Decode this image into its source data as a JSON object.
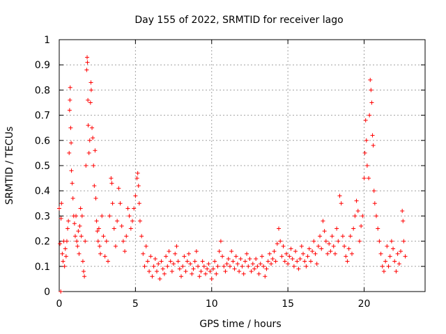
{
  "chart_data": {
    "type": "scatter",
    "title": "Day 155 of 2022, SRMTID for receiver lago",
    "xlabel": "GPS time / hours",
    "ylabel": "SRMTID / TECUs",
    "xlim": [
      0,
      24
    ],
    "ylim": [
      0,
      1
    ],
    "xticks": [
      "0",
      "5",
      "10",
      "15",
      "20"
    ],
    "xtick_values": [
      0,
      5,
      10,
      15,
      20
    ],
    "yticks": [
      "0",
      "0.1",
      "0.2",
      "0.3",
      "0.4",
      "0.5",
      "0.6",
      "0.7",
      "0.8",
      "0.9",
      "1"
    ],
    "ytick_values": [
      0,
      0.1,
      0.2,
      0.3,
      0.4,
      0.5,
      0.6,
      0.7,
      0.8,
      0.9,
      1.0
    ],
    "grid": true,
    "marker": "+",
    "color": "#ff0000",
    "series": [
      {
        "name": "SRMTID",
        "points": [
          [
            0.0,
            0.33
          ],
          [
            0.05,
            0.19
          ],
          [
            0.1,
            0.0
          ],
          [
            0.12,
            0.29
          ],
          [
            0.15,
            0.35
          ],
          [
            0.2,
            0.15
          ],
          [
            0.25,
            0.12
          ],
          [
            0.3,
            0.2
          ],
          [
            0.35,
            0.1
          ],
          [
            0.4,
            0.17
          ],
          [
            0.45,
            0.14
          ],
          [
            0.5,
            0.2
          ],
          [
            0.55,
            0.25
          ],
          [
            0.6,
            0.28
          ],
          [
            0.65,
            0.55
          ],
          [
            0.68,
            0.72
          ],
          [
            0.7,
            0.76
          ],
          [
            0.72,
            0.81
          ],
          [
            0.75,
            0.65
          ],
          [
            0.78,
            0.59
          ],
          [
            0.8,
            0.48
          ],
          [
            0.85,
            0.43
          ],
          [
            0.9,
            0.37
          ],
          [
            0.95,
            0.3
          ],
          [
            1.0,
            0.27
          ],
          [
            1.05,
            0.22
          ],
          [
            1.1,
            0.3
          ],
          [
            1.15,
            0.2
          ],
          [
            1.2,
            0.18
          ],
          [
            1.25,
            0.24
          ],
          [
            1.3,
            0.15
          ],
          [
            1.35,
            0.26
          ],
          [
            1.4,
            0.33
          ],
          [
            1.45,
            0.22
          ],
          [
            1.5,
            0.3
          ],
          [
            1.55,
            0.12
          ],
          [
            1.6,
            0.08
          ],
          [
            1.65,
            0.06
          ],
          [
            1.7,
            0.2
          ],
          [
            1.75,
            0.5
          ],
          [
            1.8,
            0.88
          ],
          [
            1.83,
            0.93
          ],
          [
            1.85,
            0.91
          ],
          [
            1.88,
            0.76
          ],
          [
            1.9,
            0.66
          ],
          [
            1.95,
            0.55
          ],
          [
            2.0,
            0.6
          ],
          [
            2.05,
            0.75
          ],
          [
            2.08,
            0.83
          ],
          [
            2.1,
            0.8
          ],
          [
            2.15,
            0.65
          ],
          [
            2.2,
            0.61
          ],
          [
            2.25,
            0.5
          ],
          [
            2.3,
            0.42
          ],
          [
            2.35,
            0.56
          ],
          [
            2.4,
            0.37
          ],
          [
            2.45,
            0.28
          ],
          [
            2.5,
            0.24
          ],
          [
            2.55,
            0.2
          ],
          [
            2.6,
            0.25
          ],
          [
            2.65,
            0.18
          ],
          [
            2.7,
            0.15
          ],
          [
            2.8,
            0.3
          ],
          [
            2.9,
            0.22
          ],
          [
            3.0,
            0.14
          ],
          [
            3.1,
            0.2
          ],
          [
            3.2,
            0.12
          ],
          [
            3.3,
            0.3
          ],
          [
            3.4,
            0.45
          ],
          [
            3.45,
            0.43
          ],
          [
            3.5,
            0.35
          ],
          [
            3.6,
            0.25
          ],
          [
            3.7,
            0.18
          ],
          [
            3.8,
            0.28
          ],
          [
            3.9,
            0.41
          ],
          [
            4.0,
            0.35
          ],
          [
            4.1,
            0.26
          ],
          [
            4.2,
            0.2
          ],
          [
            4.3,
            0.16
          ],
          [
            4.4,
            0.22
          ],
          [
            4.5,
            0.33
          ],
          [
            4.6,
            0.3
          ],
          [
            4.7,
            0.25
          ],
          [
            4.8,
            0.28
          ],
          [
            4.9,
            0.33
          ],
          [
            5.0,
            0.38
          ],
          [
            5.1,
            0.45
          ],
          [
            5.15,
            0.47
          ],
          [
            5.2,
            0.42
          ],
          [
            5.25,
            0.35
          ],
          [
            5.3,
            0.28
          ],
          [
            5.4,
            0.22
          ],
          [
            5.5,
            0.15
          ],
          [
            5.6,
            0.1
          ],
          [
            5.7,
            0.18
          ],
          [
            5.8,
            0.12
          ],
          [
            5.9,
            0.08
          ],
          [
            6.0,
            0.14
          ],
          [
            6.1,
            0.06
          ],
          [
            6.2,
            0.1
          ],
          [
            6.3,
            0.13
          ],
          [
            6.4,
            0.08
          ],
          [
            6.5,
            0.11
          ],
          [
            6.6,
            0.05
          ],
          [
            6.7,
            0.12
          ],
          [
            6.8,
            0.09
          ],
          [
            6.9,
            0.07
          ],
          [
            7.0,
            0.14
          ],
          [
            7.1,
            0.1
          ],
          [
            7.2,
            0.16
          ],
          [
            7.3,
            0.12
          ],
          [
            7.4,
            0.08
          ],
          [
            7.5,
            0.11
          ],
          [
            7.6,
            0.15
          ],
          [
            7.7,
            0.18
          ],
          [
            7.8,
            0.12
          ],
          [
            7.9,
            0.09
          ],
          [
            8.0,
            0.06
          ],
          [
            8.1,
            0.1
          ],
          [
            8.2,
            0.14
          ],
          [
            8.3,
            0.08
          ],
          [
            8.4,
            0.12
          ],
          [
            8.5,
            0.15
          ],
          [
            8.6,
            0.11
          ],
          [
            8.7,
            0.07
          ],
          [
            8.8,
            0.09
          ],
          [
            8.9,
            0.12
          ],
          [
            9.0,
            0.16
          ],
          [
            9.1,
            0.1
          ],
          [
            9.2,
            0.06
          ],
          [
            9.3,
            0.08
          ],
          [
            9.4,
            0.12
          ],
          [
            9.5,
            0.1
          ],
          [
            9.6,
            0.07
          ],
          [
            9.7,
            0.09
          ],
          [
            9.8,
            0.11
          ],
          [
            9.9,
            0.08
          ],
          [
            10.0,
            0.05
          ],
          [
            10.1,
            0.09
          ],
          [
            10.2,
            0.12
          ],
          [
            10.3,
            0.07
          ],
          [
            10.4,
            0.1
          ],
          [
            10.5,
            0.16
          ],
          [
            10.6,
            0.2
          ],
          [
            10.7,
            0.14
          ],
          [
            10.8,
            0.1
          ],
          [
            10.9,
            0.08
          ],
          [
            11.0,
            0.11
          ],
          [
            11.1,
            0.13
          ],
          [
            11.2,
            0.1
          ],
          [
            11.3,
            0.16
          ],
          [
            11.4,
            0.12
          ],
          [
            11.5,
            0.09
          ],
          [
            11.6,
            0.14
          ],
          [
            11.7,
            0.11
          ],
          [
            11.8,
            0.08
          ],
          [
            11.9,
            0.13
          ],
          [
            12.0,
            0.1
          ],
          [
            12.1,
            0.07
          ],
          [
            12.2,
            0.12
          ],
          [
            12.3,
            0.15
          ],
          [
            12.4,
            0.1
          ],
          [
            12.5,
            0.13
          ],
          [
            12.6,
            0.08
          ],
          [
            12.7,
            0.11
          ],
          [
            12.8,
            0.09
          ],
          [
            12.9,
            0.13
          ],
          [
            13.0,
            0.1
          ],
          [
            13.1,
            0.07
          ],
          [
            13.2,
            0.11
          ],
          [
            13.3,
            0.14
          ],
          [
            13.4,
            0.1
          ],
          [
            13.5,
            0.06
          ],
          [
            13.6,
            0.09
          ],
          [
            13.7,
            0.12
          ],
          [
            13.8,
            0.15
          ],
          [
            13.9,
            0.11
          ],
          [
            14.0,
            0.13
          ],
          [
            14.1,
            0.16
          ],
          [
            14.2,
            0.12
          ],
          [
            14.3,
            0.19
          ],
          [
            14.4,
            0.25
          ],
          [
            14.5,
            0.2
          ],
          [
            14.6,
            0.14
          ],
          [
            14.7,
            0.18
          ],
          [
            14.8,
            0.12
          ],
          [
            14.9,
            0.15
          ],
          [
            15.0,
            0.11
          ],
          [
            15.1,
            0.14
          ],
          [
            15.2,
            0.17
          ],
          [
            15.3,
            0.13
          ],
          [
            15.4,
            0.1
          ],
          [
            15.5,
            0.16
          ],
          [
            15.6,
            0.12
          ],
          [
            15.7,
            0.09
          ],
          [
            15.8,
            0.13
          ],
          [
            15.9,
            0.18
          ],
          [
            16.0,
            0.15
          ],
          [
            16.1,
            0.12
          ],
          [
            16.2,
            0.1
          ],
          [
            16.3,
            0.14
          ],
          [
            16.4,
            0.17
          ],
          [
            16.5,
            0.12
          ],
          [
            16.6,
            0.16
          ],
          [
            16.7,
            0.2
          ],
          [
            16.8,
            0.15
          ],
          [
            16.9,
            0.11
          ],
          [
            17.0,
            0.18
          ],
          [
            17.1,
            0.22
          ],
          [
            17.2,
            0.17
          ],
          [
            17.3,
            0.28
          ],
          [
            17.4,
            0.24
          ],
          [
            17.5,
            0.2
          ],
          [
            17.6,
            0.15
          ],
          [
            17.7,
            0.19
          ],
          [
            17.8,
            0.16
          ],
          [
            17.9,
            0.22
          ],
          [
            18.0,
            0.18
          ],
          [
            18.1,
            0.15
          ],
          [
            18.2,
            0.25
          ],
          [
            18.3,
            0.2
          ],
          [
            18.4,
            0.38
          ],
          [
            18.5,
            0.35
          ],
          [
            18.6,
            0.22
          ],
          [
            18.7,
            0.18
          ],
          [
            18.8,
            0.14
          ],
          [
            18.9,
            0.12
          ],
          [
            19.0,
            0.17
          ],
          [
            19.1,
            0.22
          ],
          [
            19.2,
            0.15
          ],
          [
            19.3,
            0.25
          ],
          [
            19.4,
            0.3
          ],
          [
            19.5,
            0.36
          ],
          [
            19.6,
            0.32
          ],
          [
            19.7,
            0.2
          ],
          [
            19.8,
            0.26
          ],
          [
            19.9,
            0.3
          ],
          [
            20.0,
            0.45
          ],
          [
            20.05,
            0.55
          ],
          [
            20.1,
            0.68
          ],
          [
            20.15,
            0.6
          ],
          [
            20.2,
            0.5
          ],
          [
            20.3,
            0.45
          ],
          [
            20.35,
            0.7
          ],
          [
            20.4,
            0.84
          ],
          [
            20.45,
            0.8
          ],
          [
            20.5,
            0.75
          ],
          [
            20.55,
            0.62
          ],
          [
            20.6,
            0.58
          ],
          [
            20.65,
            0.4
          ],
          [
            20.7,
            0.35
          ],
          [
            20.8,
            0.3
          ],
          [
            20.9,
            0.25
          ],
          [
            21.0,
            0.2
          ],
          [
            21.1,
            0.15
          ],
          [
            21.2,
            0.1
          ],
          [
            21.3,
            0.08
          ],
          [
            21.4,
            0.12
          ],
          [
            21.5,
            0.18
          ],
          [
            21.6,
            0.1
          ],
          [
            21.7,
            0.14
          ],
          [
            21.8,
            0.2
          ],
          [
            21.9,
            0.17
          ],
          [
            22.0,
            0.12
          ],
          [
            22.1,
            0.08
          ],
          [
            22.2,
            0.15
          ],
          [
            22.3,
            0.11
          ],
          [
            22.4,
            0.16
          ],
          [
            22.5,
            0.32
          ],
          [
            22.55,
            0.28
          ],
          [
            22.6,
            0.2
          ],
          [
            22.7,
            0.14
          ]
        ]
      }
    ]
  }
}
